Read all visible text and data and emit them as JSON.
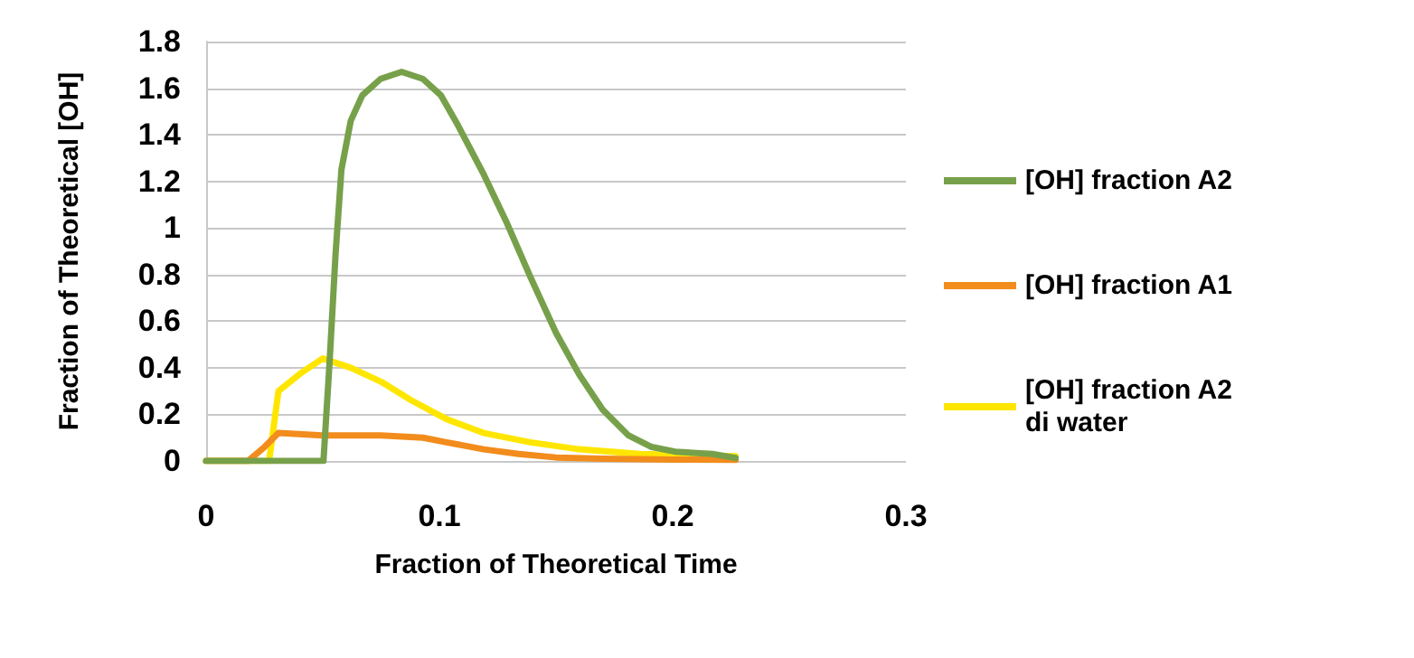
{
  "chart_data": {
    "type": "line",
    "xlabel": "Fraction of Theoretical Time",
    "ylabel": "Fraction of Theoretical [OH]",
    "xlim": [
      0,
      0.3
    ],
    "xticks": [
      0,
      0.1,
      0.2,
      0.3
    ],
    "ylim": [
      0,
      1.8
    ],
    "yticks": [
      0,
      0.2,
      0.4,
      0.6,
      0.8,
      1,
      1.2,
      1.4,
      1.6,
      1.8
    ],
    "grid": "y",
    "legend": "right",
    "marker": "none",
    "line_style": "solid",
    "series": [
      {
        "name": "[OH] fraction A2",
        "color": "#77a04a",
        "x": [
          0,
          0.0503,
          0.0529,
          0.0555,
          0.058,
          0.062,
          0.067,
          0.0748,
          0.0838,
          0.0929,
          0.1006,
          0.108,
          0.119,
          0.129,
          0.139,
          0.15,
          0.16,
          0.17,
          0.181,
          0.191,
          0.201,
          0.217,
          0.227
        ],
        "values": [
          0,
          0,
          0.42,
          0.89,
          1.25,
          1.46,
          1.57,
          1.64,
          1.67,
          1.64,
          1.57,
          1.44,
          1.23,
          1.02,
          0.79,
          0.55,
          0.37,
          0.22,
          0.11,
          0.06,
          0.04,
          0.03,
          0.013
        ]
      },
      {
        "name": "[OH] fraction A1",
        "color": "#f28c1c",
        "x": [
          0,
          0.018,
          0.025,
          0.031,
          0.05,
          0.075,
          0.093,
          0.103,
          0.119,
          0.134,
          0.15,
          0.17,
          0.2,
          0.227
        ],
        "values": [
          0,
          0,
          0.06,
          0.12,
          0.11,
          0.11,
          0.1,
          0.08,
          0.05,
          0.03,
          0.015,
          0.01,
          0.006,
          0.005
        ]
      },
      {
        "name": "[OH] fraction A2 di water",
        "color": "#ffe600",
        "x": [
          0,
          0.027,
          0.031,
          0.041,
          0.05,
          0.062,
          0.075,
          0.088,
          0.103,
          0.119,
          0.139,
          0.16,
          0.186,
          0.227
        ],
        "values": [
          0,
          0,
          0.3,
          0.38,
          0.44,
          0.4,
          0.34,
          0.26,
          0.18,
          0.12,
          0.08,
          0.05,
          0.03,
          0.02
        ]
      }
    ]
  }
}
